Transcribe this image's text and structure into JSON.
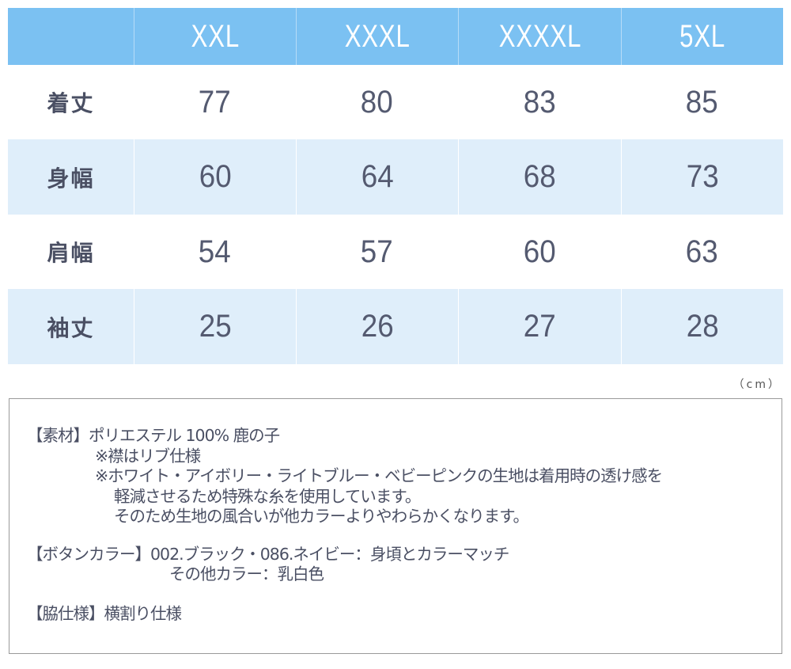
{
  "size_table": {
    "headers": [
      "",
      "XXL",
      "XXXL",
      "XXXXL",
      "5XL"
    ],
    "rows": [
      {
        "label": "着丈",
        "values": [
          "77",
          "80",
          "83",
          "85"
        ]
      },
      {
        "label": "身幅",
        "values": [
          "60",
          "64",
          "68",
          "73"
        ]
      },
      {
        "label": "肩幅",
        "values": [
          "54",
          "57",
          "60",
          "63"
        ]
      },
      {
        "label": "袖丈",
        "values": [
          "25",
          "26",
          "27",
          "28"
        ]
      }
    ],
    "unit": "（cm）"
  },
  "notes": {
    "material": {
      "label": "【素材】",
      "line1": "ポリエステル 100% 鹿の子",
      "line2": "※襟はリブ仕様",
      "line3": "※ホワイト・アイボリー・ライトブルー・ベビーピンクの生地は着用時の透け感を",
      "line4": "軽減させるため特殊な糸を使用しています。",
      "line5": "そのため生地の風合いが他カラーよりやわらかくなります。"
    },
    "button_color": {
      "label": "【ボタンカラー】",
      "line1": "002.ブラック・086.ネイビー：身頃とカラーマッチ",
      "line2": "その他カラー：乳白色"
    },
    "side": {
      "label": "【脇仕様】",
      "line1": "横割り仕様"
    }
  },
  "colors": {
    "header_bg": "#7bc1f2",
    "stripe_bg": "#dfeefa",
    "text": "#4a4f63"
  }
}
